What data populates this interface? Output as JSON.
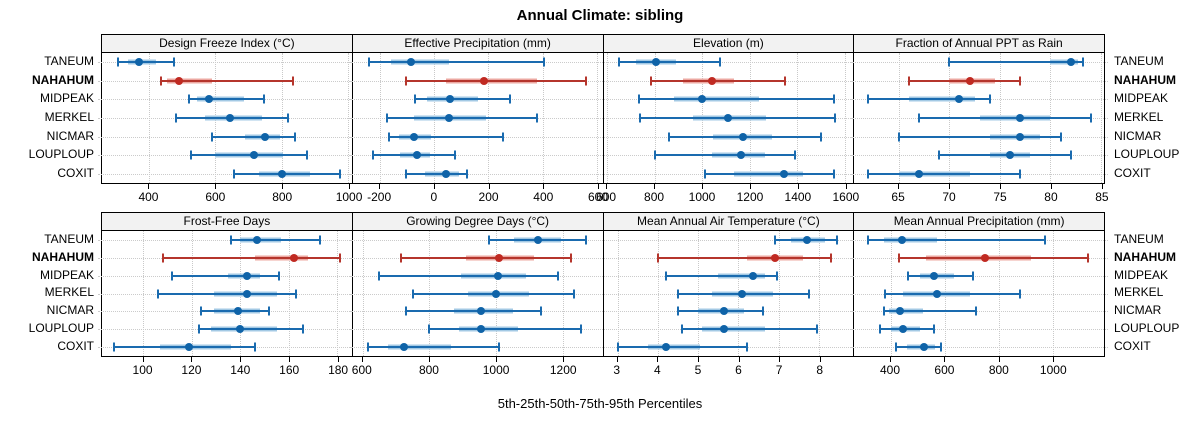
{
  "title": "Annual Climate: sibling",
  "caption": "5th-25th-50th-75th-95th Percentiles",
  "colors": {
    "normal": {
      "line": "#1A6BAF",
      "band": "#A3C9E4",
      "dot": "#0F63A8"
    },
    "highlight": {
      "line": "#B5352C",
      "band": "#ECA8A2",
      "dot": "#C02A22"
    },
    "grid": "#C9C9C9",
    "strip_bg": "#F2F2F2",
    "border": "#000000"
  },
  "chart_data": {
    "type": "scatter",
    "subtype": "percentile-interval-dotplot",
    "percentiles": [
      "5th",
      "25th",
      "50th",
      "75th",
      "95th"
    ],
    "sites": [
      "TANEUM",
      "NAHAHUM",
      "MIDPEAK",
      "MERKEL",
      "NICMAR",
      "LOUPLOUP",
      "COXIT"
    ],
    "highlight_site": "NAHAHUM",
    "grid": true,
    "layout": {
      "rows": 2,
      "cols": 4,
      "plot_height_row1": 130,
      "plot_height_row2": 125
    },
    "panels": [
      {
        "title": "Design Freeze Index (°C)",
        "domain": [
          258,
          1011
        ],
        "ticks": [
          400,
          600,
          800,
          1000
        ],
        "values": {
          "TANEUM": [
            305,
            335,
            370,
            420,
            475
          ],
          "NAHAHUM": [
            435,
            455,
            490,
            590,
            835
          ],
          "MIDPEAK": [
            520,
            545,
            580,
            685,
            745
          ],
          "MERKEL": [
            480,
            570,
            645,
            740,
            820
          ],
          "NICMAR": [
            590,
            690,
            750,
            795,
            840
          ],
          "LOUPLOUP": [
            525,
            600,
            715,
            805,
            875
          ],
          "COXIT": [
            655,
            730,
            800,
            885,
            975
          ]
        }
      },
      {
        "title": "Effective Precipitation (mm)",
        "domain": [
          -300,
          620
        ],
        "ticks": [
          -200,
          0,
          200,
          400,
          600
        ],
        "values": {
          "TANEUM": [
            -240,
            -160,
            -85,
            55,
            405
          ],
          "NAHAHUM": [
            -105,
            45,
            185,
            380,
            560
          ],
          "MIDPEAK": [
            -70,
            -25,
            60,
            160,
            280
          ],
          "MERKEL": [
            -175,
            -75,
            55,
            190,
            380
          ],
          "NICMAR": [
            -165,
            -130,
            -75,
            -10,
            255
          ],
          "LOUPLOUP": [
            -225,
            -125,
            -65,
            -15,
            75
          ],
          "COXIT": [
            -105,
            -35,
            45,
            90,
            120
          ]
        }
      },
      {
        "title": "Elevation (m)",
        "domain": [
          585,
          1635
        ],
        "ticks": [
          600,
          800,
          1000,
          1200,
          1400,
          1600
        ],
        "values": {
          "TANEUM": [
            650,
            720,
            805,
            890,
            1075
          ],
          "NAHAHUM": [
            785,
            920,
            1040,
            1135,
            1350
          ],
          "MIDPEAK": [
            735,
            880,
            1000,
            1240,
            1555
          ],
          "MERKEL": [
            740,
            960,
            1110,
            1270,
            1560
          ],
          "NICMAR": [
            860,
            1045,
            1170,
            1295,
            1500
          ],
          "LOUPLOUP": [
            800,
            1040,
            1165,
            1265,
            1390
          ],
          "COXIT": [
            1010,
            1135,
            1345,
            1425,
            1555
          ]
        }
      },
      {
        "title": "Fraction of Annual PPT as Rain",
        "domain": [
          60.6,
          85.3
        ],
        "ticks": [
          65,
          70,
          75,
          80,
          85
        ],
        "values": {
          "TANEUM": [
            70,
            80,
            82,
            82.7,
            83.2
          ],
          "NAHAHUM": [
            66,
            70,
            72,
            74.5,
            77
          ],
          "MIDPEAK": [
            62,
            66,
            71,
            72.5,
            74
          ],
          "MERKEL": [
            67,
            73,
            77,
            80,
            84
          ],
          "NICMAR": [
            65,
            74,
            77,
            79,
            81
          ],
          "LOUPLOUP": [
            69,
            74,
            76,
            78,
            82
          ],
          "COXIT": [
            62,
            65,
            67,
            72,
            77
          ]
        }
      },
      {
        "title": "Frost-Free Days",
        "domain": [
          83,
          186
        ],
        "ticks": [
          100,
          120,
          140,
          160,
          180
        ],
        "values": {
          "TANEUM": [
            136,
            140,
            147,
            157,
            173
          ],
          "NAHAHUM": [
            108,
            146,
            162,
            168,
            181
          ],
          "MIDPEAK": [
            112,
            135,
            143,
            148,
            156
          ],
          "MERKEL": [
            106,
            129,
            143,
            155,
            163
          ],
          "NICMAR": [
            124,
            129,
            139,
            148,
            152
          ],
          "LOUPLOUP": [
            123,
            128,
            140,
            155,
            166
          ],
          "COXIT": [
            88,
            107,
            119,
            136,
            146
          ]
        }
      },
      {
        "title": "Growing Degree Days (°C)",
        "domain": [
          570,
          1320
        ],
        "ticks": [
          600,
          800,
          1000,
          1200
        ],
        "values": {
          "TANEUM": [
            980,
            1055,
            1125,
            1195,
            1270
          ],
          "NAHAHUM": [
            715,
            910,
            1010,
            1115,
            1225
          ],
          "MIDPEAK": [
            650,
            895,
            1005,
            1090,
            1185
          ],
          "MERKEL": [
            750,
            915,
            1000,
            1100,
            1235
          ],
          "NICMAR": [
            730,
            875,
            955,
            1050,
            1135
          ],
          "LOUPLOUP": [
            800,
            890,
            955,
            1065,
            1255
          ],
          "COXIT": [
            615,
            675,
            725,
            865,
            1010
          ]
        }
      },
      {
        "title": "Mean Annual Air Temperature (°C)",
        "domain": [
          2.65,
          8.85
        ],
        "ticks": [
          3,
          4,
          5,
          6,
          7,
          8
        ],
        "values": {
          "TANEUM": [
            6.9,
            7.3,
            7.7,
            8.15,
            8.45
          ],
          "NAHAHUM": [
            4.0,
            6.2,
            6.9,
            7.6,
            8.3
          ],
          "MIDPEAK": [
            4.2,
            5.5,
            6.35,
            6.65,
            6.95
          ],
          "MERKEL": [
            4.5,
            5.35,
            6.1,
            6.85,
            7.75
          ],
          "NICMAR": [
            4.5,
            5.0,
            5.65,
            6.15,
            6.6
          ],
          "LOUPLOUP": [
            4.6,
            5.1,
            5.65,
            6.65,
            7.95
          ],
          "COXIT": [
            3.0,
            3.75,
            4.2,
            5.05,
            6.2
          ]
        }
      },
      {
        "title": "Mean Annual Precipitation (mm)",
        "domain": [
          265,
          1190
        ],
        "ticks": [
          400,
          600,
          800,
          1000
        ],
        "values": {
          "TANEUM": [
            315,
            375,
            440,
            570,
            970
          ],
          "NAHAHUM": [
            430,
            530,
            750,
            920,
            1130
          ],
          "MIDPEAK": [
            465,
            510,
            560,
            635,
            705
          ],
          "MERKEL": [
            380,
            445,
            570,
            695,
            880
          ],
          "NICMAR": [
            375,
            395,
            435,
            520,
            715
          ],
          "LOUPLOUP": [
            360,
            400,
            445,
            510,
            560
          ],
          "COXIT": [
            420,
            460,
            525,
            565,
            585
          ]
        }
      }
    ]
  }
}
